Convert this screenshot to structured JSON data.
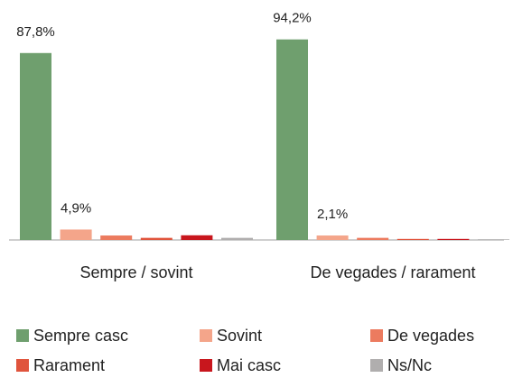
{
  "chart_data": {
    "type": "bar",
    "categories": [
      "Sempre / sovint",
      "De vegades / rarament"
    ],
    "series": [
      {
        "name": "Sempre casc",
        "color": "#6f9f6e",
        "values": [
          87.8,
          94.2
        ],
        "value_labels": [
          "87,8%",
          "94,2%"
        ]
      },
      {
        "name": "Sovint",
        "color": "#f4a58a",
        "values": [
          4.9,
          2.1
        ],
        "value_labels": [
          "4,9%",
          "2,1%"
        ]
      },
      {
        "name": "De vegades",
        "color": "#ec7b5f",
        "values": [
          2.1,
          1.0
        ]
      },
      {
        "name": "Rarament",
        "color": "#e0543c",
        "values": [
          1.0,
          0.5
        ]
      },
      {
        "name": "Mai casc",
        "color": "#c8161d",
        "values": [
          2.2,
          0.5
        ]
      },
      {
        "name": "Ns/Nc",
        "color": "#b0aeae",
        "values": [
          1.0,
          0.3
        ]
      }
    ],
    "ylim": [
      0,
      100
    ]
  }
}
